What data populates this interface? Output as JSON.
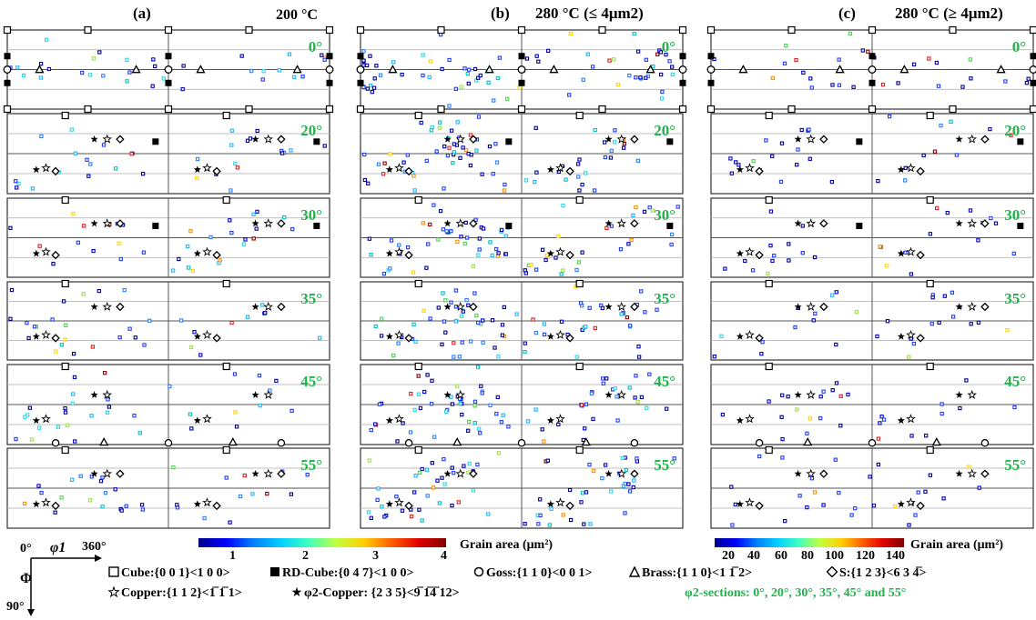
{
  "panels": [
    {
      "label": "(a)",
      "condition": "200 °C"
    },
    {
      "label": "(b)",
      "condition": "280 °C (≤ 4μm2)"
    },
    {
      "label": "(c)",
      "condition": "280 °C (≥ 4μm2)"
    }
  ],
  "phi2_sections": [
    "0°",
    "20°",
    "30°",
    "35°",
    "45°",
    "55°"
  ],
  "colorbars": [
    {
      "title": "Grain area (μm²)",
      "ticks": [
        "1",
        "2",
        "3",
        "4"
      ],
      "min": 0.3,
      "max": 4
    },
    {
      "title": "Grain area (μm²)",
      "ticks": [
        "20",
        "40",
        "60",
        "80",
        "100",
        "120",
        "140"
      ],
      "min": 5,
      "max": 145
    }
  ],
  "axes_key": {
    "phi1_start": "0°",
    "phi1_label": "φ1",
    "phi1_end": "360°",
    "Phi_label": "Φ",
    "Phi_end": "90°"
  },
  "legend": {
    "cube": "Cube:{0 0 1}<1 0 0>",
    "rd_cube": "RD-Cube:{0 4 7}<1 0 0>",
    "goss": "Goss:{1 1 0}<0 0 1>",
    "brass": "Brass:{1 1 0}<1 1̅ 2>",
    "s": "S:{1 2 3}<6 3 4̅>",
    "copper": "Copper:{1 1 2}<1̅ 1̅ 1>",
    "phi2_copper": "φ2-Copper: {2 3 5}<9̅ 1̅4̅ 12>",
    "sections_note": "φ2-sections:   0°, 20°, 30°, 35°, 45° and 55°"
  },
  "colors": {
    "section_label": "#22b24c",
    "grid": "#888888",
    "frame": "#333333"
  }
}
